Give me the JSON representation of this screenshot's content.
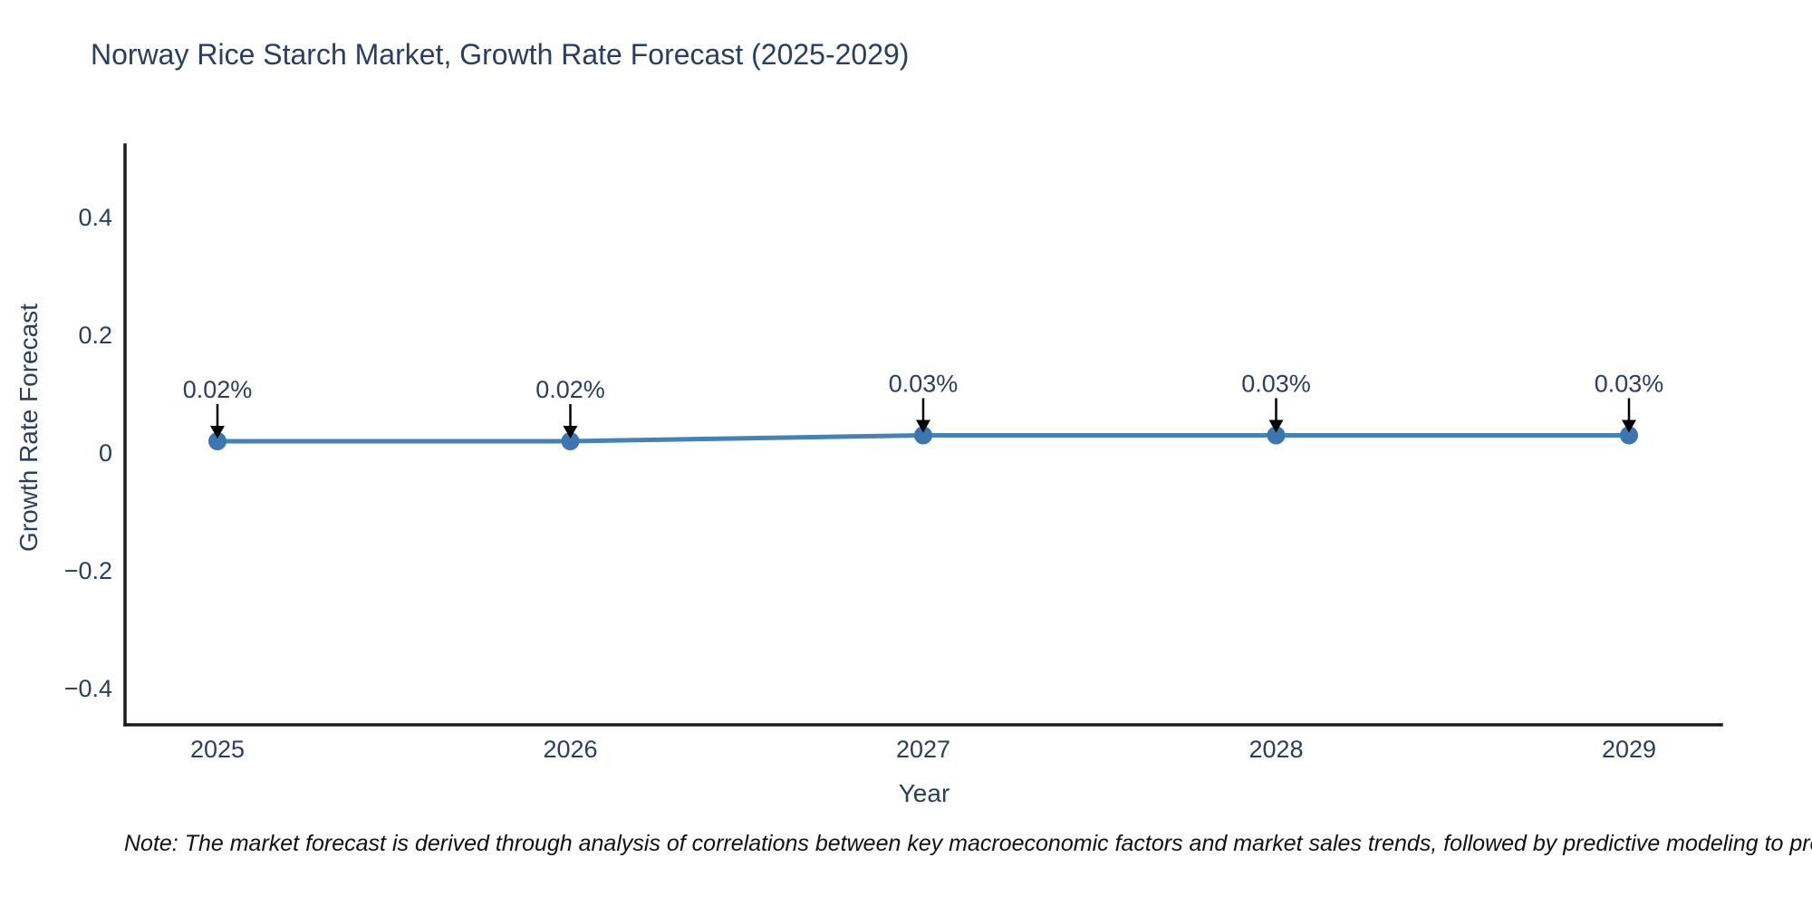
{
  "page": {
    "background": "#ffffff"
  },
  "chart_data": {
    "type": "line",
    "title": "Norway Rice Starch Market, Growth Rate Forecast (2025-2029)",
    "xlabel": "Year",
    "ylabel": "Growth Rate Forecast",
    "categories": [
      "2025",
      "2026",
      "2027",
      "2028",
      "2029"
    ],
    "series": [
      {
        "name": "Growth Rate Forecast",
        "values": [
          0.02,
          0.02,
          0.03,
          0.03,
          0.03
        ],
        "point_labels": [
          "0.02%",
          "0.02%",
          "0.03%",
          "0.03%",
          "0.03%"
        ]
      }
    ],
    "yticks": {
      "values": [
        0.4,
        0.2,
        0,
        -0.2,
        -0.4
      ],
      "labels": [
        "0.4",
        "0.2",
        "0",
        "−0.2",
        "−0.4"
      ]
    },
    "ylim": [
      -0.46,
      0.52
    ],
    "grid": false,
    "legend": false,
    "annotations_style": "value label with black down arrow to each marker",
    "colors": {
      "line": "#4682b4",
      "marker": "#3c76b0",
      "arrow": "#000000",
      "axis_line": "#1a1a1a",
      "text": "#2a3f5f",
      "note_text": "#111111"
    }
  },
  "note": {
    "text": "Note: The market forecast is derived through analysis of correlations between key macroeconomic factors and market sales trends, followed by predictive modeling to project future sa"
  }
}
